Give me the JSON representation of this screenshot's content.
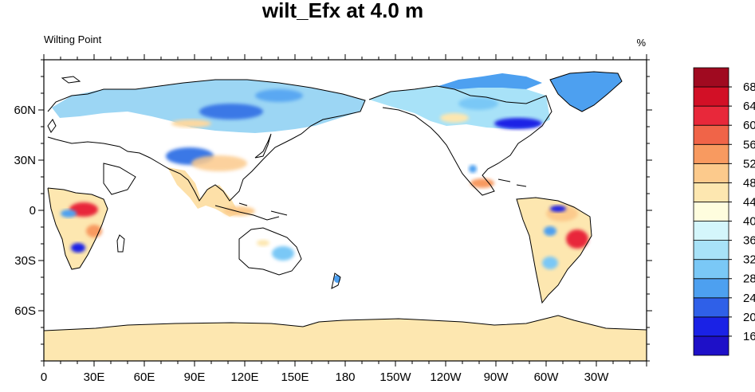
{
  "figure": {
    "title": "wilt_Efx at 4.0 m",
    "left_subtitle": "Wilting Point",
    "right_subtitle": "%"
  },
  "map": {
    "projection": "cylindrical-equidistant",
    "center_longitude": 180,
    "land_color_no_data": "#ffffff",
    "ocean_color": "#ffffff",
    "x_tick_labels": [
      "0",
      "30E",
      "60E",
      "90E",
      "120E",
      "150E",
      "180",
      "150W",
      "120W",
      "90W",
      "60W",
      "30W"
    ],
    "y_tick_labels": [
      "60N",
      "30N",
      "0",
      "30S",
      "60S"
    ]
  },
  "colorbar": {
    "orientation": "vertical",
    "tick_labels": [
      "16",
      "20",
      "24",
      "28",
      "32",
      "36",
      "40",
      "44",
      "48",
      "52",
      "56",
      "60",
      "64",
      "68"
    ],
    "colors_bottom_to_top": [
      "#1e10c8",
      "#1a22e6",
      "#2f60e8",
      "#4da0f0",
      "#7ac8f6",
      "#a8e2f8",
      "#d4f6fb",
      "#fefdde",
      "#fde7b0",
      "#fcca8c",
      "#f89a60",
      "#f06448",
      "#e8283a",
      "#d21026",
      "#a00a20"
    ]
  },
  "chart_data": {
    "type": "heatmap",
    "title": "wilt_Efx at 4.0 m",
    "variable": "Wilting Point",
    "units": "%",
    "levels": [
      16,
      20,
      24,
      28,
      32,
      36,
      40,
      44,
      48,
      52,
      56,
      60,
      64,
      68
    ],
    "regions": [
      {
        "region": "Boreal Eurasia / Siberia",
        "value": 30
      },
      {
        "region": "West Siberian lowlands",
        "value": 22
      },
      {
        "region": "Tibetan Plateau",
        "value": 24
      },
      {
        "region": "South & SE Asia",
        "value": 48
      },
      {
        "region": "Central Africa (Congo)",
        "value": 60
      },
      {
        "region": "Southern Africa (Kalahari)",
        "value": 22
      },
      {
        "region": "Eastern Australia",
        "value": 32
      },
      {
        "region": "Canada / Alaska",
        "value": 32
      },
      {
        "region": "Hudson Bay region",
        "value": 20
      },
      {
        "region": "Greenland",
        "value": 28
      },
      {
        "region": "Amazon Basin",
        "value": 50
      },
      {
        "region": "Eastern Brazil",
        "value": 62
      },
      {
        "region": "Antarctica",
        "value": 46
      }
    ]
  }
}
